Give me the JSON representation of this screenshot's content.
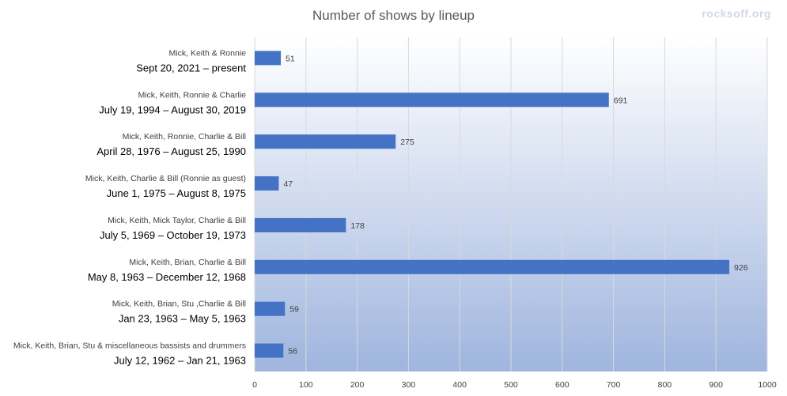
{
  "watermark": "rocksoff.org",
  "chart_data": {
    "type": "bar",
    "orientation": "horizontal",
    "title": "Number of shows by lineup",
    "xlabel": "",
    "ylabel": "",
    "xlim": [
      0,
      1000
    ],
    "x_ticks": [
      0,
      100,
      200,
      300,
      400,
      500,
      600,
      700,
      800,
      900,
      1000
    ],
    "grid": true,
    "legend": "none",
    "bar_color": "#4472c4",
    "background_gradient": [
      "#ffffff",
      "#9fb5de"
    ],
    "categories": [
      {
        "lineup": "Mick, Keith & Ronnie",
        "period": "Sept 20, 2021 – present"
      },
      {
        "lineup": "Mick, Keith, Ronnie & Charlie",
        "period": "July 19, 1994 – August 30, 2019"
      },
      {
        "lineup": "Mick, Keith, Ronnie, Charlie & Bill",
        "period": "April 28, 1976 – August 25, 1990"
      },
      {
        "lineup": "Mick, Keith, Charlie & Bill (Ronnie as guest)",
        "period": "June 1, 1975 – August 8, 1975"
      },
      {
        "lineup": "Mick, Keith, Mick Taylor, Charlie & Bill",
        "period": "July 5, 1969 – October 19, 1973"
      },
      {
        "lineup": "Mick, Keith, Brian, Charlie & Bill",
        "period": "May 8, 1963 – December 12, 1968"
      },
      {
        "lineup": "Mick, Keith, Brian, Stu ,Charlie & Bill",
        "period": "Jan 23, 1963 – May 5, 1963"
      },
      {
        "lineup": "Mick, Keith, Brian, Stu & miscellaneous bassists and drummers",
        "period": "July 12, 1962 – Jan 21, 1963"
      }
    ],
    "values": [
      51,
      691,
      275,
      47,
      178,
      926,
      59,
      56
    ]
  }
}
